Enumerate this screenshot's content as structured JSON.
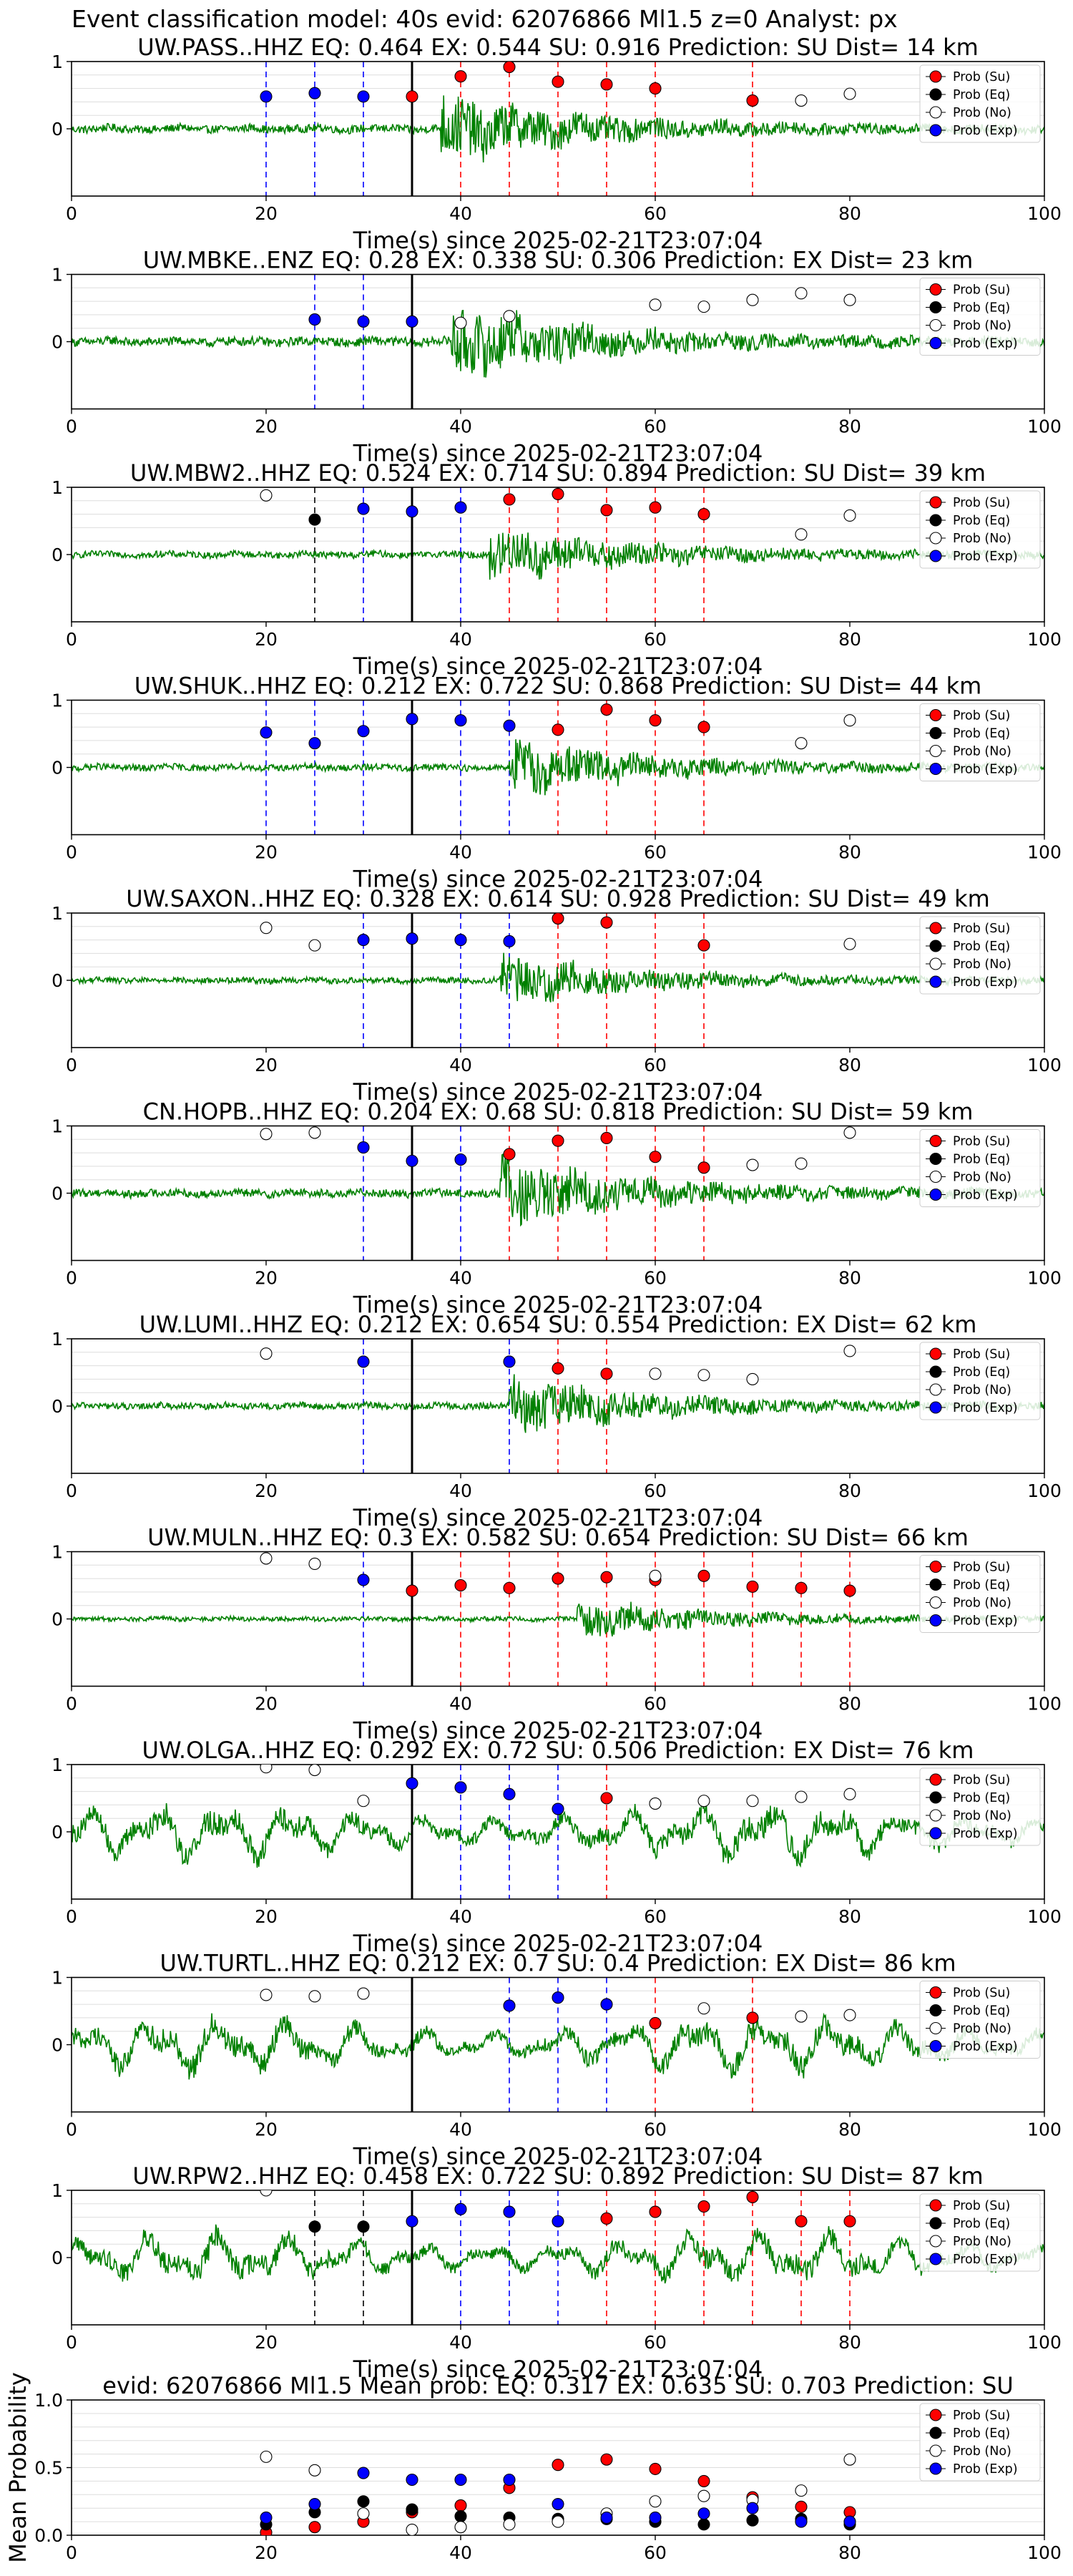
{
  "suptitle": "Event classification model: 40s evid: 62076866 Ml1.5 z=0 Analyst: px",
  "legend_labels": [
    "Prob (Su)",
    "Prob (Eq)",
    "Prob (No)",
    "Prob (Exp)"
  ],
  "colors": {
    "su": "#ff0000",
    "eq": "#000000",
    "no": "#ffffff",
    "exp": "#0000ff",
    "waveform": "#008000",
    "su_line": "#ff0000",
    "exp_line": "#0000ff",
    "eq_line": "#000000",
    "grid": "#dddddd"
  },
  "chart_data": [
    {
      "type": "scatter",
      "title": "UW.PASS..HHZ   EQ: 0.464  EX: 0.544  SU: 0.916   Prediction: SU    Dist= 14 km",
      "xlabel": "Time(s) since 2025-02-21T23:07:04",
      "ylabel": "",
      "xlim": [
        0,
        100
      ],
      "ylim": [
        -1,
        1
      ],
      "x_ticks": [
        "0",
        "20",
        "40",
        "60",
        "80",
        "100"
      ],
      "y_ticks": [
        "0",
        "1"
      ],
      "amplitude": 0.55,
      "onset": 38,
      "su_lines": [
        40,
        45,
        50,
        55,
        60,
        70
      ],
      "exp_lines": [
        20,
        25,
        30
      ],
      "eq_lines": [],
      "series": [
        {
          "name": "Prob (Su)",
          "x": [
            35,
            40,
            45,
            50,
            55,
            60,
            70
          ],
          "y": [
            0.48,
            0.78,
            0.92,
            0.7,
            0.66,
            0.6,
            0.42
          ]
        },
        {
          "name": "Prob (Eq)",
          "x": [],
          "y": []
        },
        {
          "name": "Prob (No)",
          "x": [
            75,
            80
          ],
          "y": [
            0.42,
            0.52
          ]
        },
        {
          "name": "Prob (Exp)",
          "x": [
            20,
            25,
            30
          ],
          "y": [
            0.48,
            0.53,
            0.48
          ]
        }
      ]
    },
    {
      "type": "scatter",
      "title": "UW.MBKE..ENZ   EQ: 0.28  EX: 0.338  SU: 0.306   Prediction: EX    Dist= 23 km",
      "xlabel": "Time(s) since 2025-02-21T23:07:04",
      "ylabel": "",
      "xlim": [
        0,
        100
      ],
      "ylim": [
        -1,
        1
      ],
      "x_ticks": [
        "0",
        "20",
        "40",
        "60",
        "80",
        "100"
      ],
      "y_ticks": [
        "0",
        "1"
      ],
      "amplitude": 0.6,
      "onset": 39,
      "su_lines": [],
      "exp_lines": [
        25,
        30
      ],
      "eq_lines": [],
      "series": [
        {
          "name": "Prob (Su)",
          "x": [],
          "y": []
        },
        {
          "name": "Prob (Eq)",
          "x": [],
          "y": []
        },
        {
          "name": "Prob (No)",
          "x": [
            40,
            45,
            60,
            65,
            70,
            75,
            80
          ],
          "y": [
            0.28,
            0.38,
            0.55,
            0.52,
            0.62,
            0.72,
            0.62
          ]
        },
        {
          "name": "Prob (Exp)",
          "x": [
            25,
            30,
            35
          ],
          "y": [
            0.33,
            0.3,
            0.3
          ]
        }
      ]
    },
    {
      "type": "scatter",
      "title": "UW.MBW2..HHZ   EQ: 0.524  EX: 0.714  SU: 0.894   Prediction: SU    Dist= 39 km",
      "xlabel": "Time(s) since 2025-02-21T23:07:04",
      "ylabel": "",
      "xlim": [
        0,
        100
      ],
      "ylim": [
        -1,
        1
      ],
      "x_ticks": [
        "0",
        "20",
        "40",
        "60",
        "80",
        "100"
      ],
      "y_ticks": [
        "0",
        "1"
      ],
      "amplitude": 0.45,
      "onset": 43,
      "su_lines": [
        45,
        50,
        55,
        60,
        65
      ],
      "exp_lines": [
        30,
        35,
        40
      ],
      "eq_lines": [
        25
      ],
      "series": [
        {
          "name": "Prob (Su)",
          "x": [
            45,
            50,
            55,
            60,
            65
          ],
          "y": [
            0.82,
            0.9,
            0.66,
            0.7,
            0.6
          ]
        },
        {
          "name": "Prob (Eq)",
          "x": [
            25
          ],
          "y": [
            0.52
          ]
        },
        {
          "name": "Prob (No)",
          "x": [
            20,
            75,
            80
          ],
          "y": [
            0.88,
            0.3,
            0.58
          ]
        },
        {
          "name": "Prob (Exp)",
          "x": [
            30,
            35,
            40
          ],
          "y": [
            0.68,
            0.64,
            0.7
          ]
        }
      ]
    },
    {
      "type": "scatter",
      "title": "UW.SHUK..HHZ   EQ: 0.212  EX: 0.722  SU: 0.868   Prediction: SU    Dist= 44 km",
      "xlabel": "Time(s) since 2025-02-21T23:07:04",
      "ylabel": "",
      "xlim": [
        0,
        100
      ],
      "ylim": [
        -1,
        1
      ],
      "x_ticks": [
        "0",
        "20",
        "40",
        "60",
        "80",
        "100"
      ],
      "y_ticks": [
        "0",
        "1"
      ],
      "amplitude": 0.45,
      "onset": 45,
      "su_lines": [
        50,
        55,
        60,
        65
      ],
      "exp_lines": [
        20,
        25,
        30,
        35,
        40,
        45
      ],
      "eq_lines": [],
      "series": [
        {
          "name": "Prob (Su)",
          "x": [
            50,
            55,
            60,
            65
          ],
          "y": [
            0.56,
            0.86,
            0.7,
            0.6
          ]
        },
        {
          "name": "Prob (Eq)",
          "x": [],
          "y": []
        },
        {
          "name": "Prob (No)",
          "x": [
            75,
            80
          ],
          "y": [
            0.36,
            0.7
          ]
        },
        {
          "name": "Prob (Exp)",
          "x": [
            20,
            25,
            30,
            35,
            40,
            45
          ],
          "y": [
            0.52,
            0.36,
            0.54,
            0.72,
            0.7,
            0.62
          ]
        }
      ]
    },
    {
      "type": "scatter",
      "title": "UW.SAXON..HHZ   EQ: 0.328  EX: 0.614  SU: 0.928   Prediction: SU    Dist= 49 km",
      "xlabel": "Time(s) since 2025-02-21T23:07:04",
      "ylabel": "",
      "xlim": [
        0,
        100
      ],
      "ylim": [
        -1,
        1
      ],
      "x_ticks": [
        "0",
        "20",
        "40",
        "60",
        "80",
        "100"
      ],
      "y_ticks": [
        "0",
        "1"
      ],
      "amplitude": 0.4,
      "onset": 44,
      "su_lines": [
        50,
        55,
        60,
        65
      ],
      "exp_lines": [
        30,
        35,
        40,
        45
      ],
      "eq_lines": [],
      "series": [
        {
          "name": "Prob (Su)",
          "x": [
            50,
            55,
            65
          ],
          "y": [
            0.92,
            0.86,
            0.52
          ]
        },
        {
          "name": "Prob (Eq)",
          "x": [],
          "y": []
        },
        {
          "name": "Prob (No)",
          "x": [
            20,
            25,
            80
          ],
          "y": [
            0.78,
            0.52,
            0.54
          ]
        },
        {
          "name": "Prob (Exp)",
          "x": [
            30,
            35,
            40,
            45
          ],
          "y": [
            0.6,
            0.62,
            0.6,
            0.58
          ]
        }
      ]
    },
    {
      "type": "scatter",
      "title": "CN.HOPB..HHZ   EQ: 0.204  EX: 0.68  SU: 0.818   Prediction: SU    Dist= 59 km",
      "xlabel": "Time(s) since 2025-02-21T23:07:04",
      "ylabel": "",
      "xlim": [
        0,
        100
      ],
      "ylim": [
        -1,
        1
      ],
      "x_ticks": [
        "0",
        "20",
        "40",
        "60",
        "80",
        "100"
      ],
      "y_ticks": [
        "0",
        "1"
      ],
      "amplitude": 0.55,
      "onset": 44,
      "su_lines": [
        45,
        50,
        55,
        60,
        65
      ],
      "exp_lines": [
        30,
        40
      ],
      "eq_lines": [],
      "series": [
        {
          "name": "Prob (Su)",
          "x": [
            45,
            50,
            55,
            60,
            65
          ],
          "y": [
            0.58,
            0.78,
            0.82,
            0.54,
            0.38
          ]
        },
        {
          "name": "Prob (Eq)",
          "x": [],
          "y": []
        },
        {
          "name": "Prob (No)",
          "x": [
            20,
            25,
            70,
            75,
            80
          ],
          "y": [
            0.88,
            0.9,
            0.42,
            0.44,
            0.9
          ]
        },
        {
          "name": "Prob (Exp)",
          "x": [
            30,
            35,
            40
          ],
          "y": [
            0.68,
            0.48,
            0.5
          ]
        }
      ]
    },
    {
      "type": "scatter",
      "title": "UW.LUMI..HHZ   EQ: 0.212  EX: 0.654  SU: 0.554   Prediction: EX    Dist= 62 km",
      "xlabel": "Time(s) since 2025-02-21T23:07:04",
      "ylabel": "",
      "xlim": [
        0,
        100
      ],
      "ylim": [
        -1,
        1
      ],
      "x_ticks": [
        "0",
        "20",
        "40",
        "60",
        "80",
        "100"
      ],
      "y_ticks": [
        "0",
        "1"
      ],
      "amplitude": 0.45,
      "onset": 45,
      "su_lines": [
        50,
        55
      ],
      "exp_lines": [
        30,
        45
      ],
      "eq_lines": [],
      "series": [
        {
          "name": "Prob (Su)",
          "x": [
            50,
            55
          ],
          "y": [
            0.56,
            0.48
          ]
        },
        {
          "name": "Prob (Eq)",
          "x": [],
          "y": []
        },
        {
          "name": "Prob (No)",
          "x": [
            20,
            60,
            65,
            70,
            80
          ],
          "y": [
            0.78,
            0.48,
            0.46,
            0.4,
            0.82
          ]
        },
        {
          "name": "Prob (Exp)",
          "x": [
            30,
            45
          ],
          "y": [
            0.66,
            0.66
          ]
        }
      ]
    },
    {
      "type": "scatter",
      "title": "UW.MULN..HHZ   EQ: 0.3  EX: 0.582  SU: 0.654   Prediction: SU    Dist= 66 km",
      "xlabel": "Time(s) since 2025-02-21T23:07:04",
      "ylabel": "",
      "xlim": [
        0,
        100
      ],
      "ylim": [
        -1,
        1
      ],
      "x_ticks": [
        "0",
        "20",
        "40",
        "60",
        "80",
        "100"
      ],
      "y_ticks": [
        "0",
        "1"
      ],
      "amplitude": 0.3,
      "onset": 52,
      "su_lines": [
        40,
        45,
        50,
        55,
        60,
        65,
        70,
        75,
        80
      ],
      "exp_lines": [
        30
      ],
      "eq_lines": [],
      "series": [
        {
          "name": "Prob (Su)",
          "x": [
            35,
            40,
            45,
            50,
            55,
            60,
            65,
            70,
            75,
            80
          ],
          "y": [
            0.42,
            0.5,
            0.46,
            0.6,
            0.62,
            0.58,
            0.64,
            0.48,
            0.46,
            0.42
          ]
        },
        {
          "name": "Prob (Eq)",
          "x": [],
          "y": []
        },
        {
          "name": "Prob (No)",
          "x": [
            20,
            25,
            60
          ],
          "y": [
            0.9,
            0.82,
            0.64
          ]
        },
        {
          "name": "Prob (Exp)",
          "x": [
            30
          ],
          "y": [
            0.58
          ]
        }
      ]
    },
    {
      "type": "scatter",
      "title": "UW.OLGA..HHZ   EQ: 0.292  EX: 0.72  SU: 0.506   Prediction: EX    Dist= 76 km",
      "xlabel": "Time(s) since 2025-02-21T23:07:04",
      "ylabel": "",
      "xlim": [
        0,
        100
      ],
      "ylim": [
        -1,
        1
      ],
      "x_ticks": [
        "0",
        "20",
        "40",
        "60",
        "80",
        "100"
      ],
      "y_ticks": [
        "0",
        "1"
      ],
      "amplitude": 0.55,
      "onset": 0,
      "su_lines": [
        55
      ],
      "exp_lines": [
        35,
        40,
        45,
        50
      ],
      "eq_lines": [],
      "series": [
        {
          "name": "Prob (Su)",
          "x": [
            55
          ],
          "y": [
            0.5
          ]
        },
        {
          "name": "Prob (Eq)",
          "x": [],
          "y": []
        },
        {
          "name": "Prob (No)",
          "x": [
            20,
            25,
            30,
            60,
            65,
            70,
            75,
            80
          ],
          "y": [
            0.96,
            0.92,
            0.46,
            0.42,
            0.46,
            0.46,
            0.52,
            0.56
          ]
        },
        {
          "name": "Prob (Exp)",
          "x": [
            35,
            40,
            45,
            50
          ],
          "y": [
            0.72,
            0.66,
            0.56,
            0.34
          ]
        }
      ]
    },
    {
      "type": "scatter",
      "title": "UW.TURTL..HHZ   EQ: 0.212  EX: 0.7  SU: 0.4   Prediction: EX    Dist= 86 km",
      "xlabel": "Time(s) since 2025-02-21T23:07:04",
      "ylabel": "",
      "xlim": [
        0,
        100
      ],
      "ylim": [
        -1,
        1
      ],
      "x_ticks": [
        "0",
        "20",
        "40",
        "60",
        "80",
        "100"
      ],
      "y_ticks": [
        "0",
        "1"
      ],
      "amplitude": 0.55,
      "onset": 0,
      "su_lines": [
        60,
        70
      ],
      "exp_lines": [
        45,
        50,
        55
      ],
      "eq_lines": [],
      "series": [
        {
          "name": "Prob (Su)",
          "x": [
            60,
            70
          ],
          "y": [
            0.32,
            0.4
          ]
        },
        {
          "name": "Prob (Eq)",
          "x": [],
          "y": []
        },
        {
          "name": "Prob (No)",
          "x": [
            20,
            25,
            30,
            65,
            75,
            80
          ],
          "y": [
            0.74,
            0.72,
            0.76,
            0.54,
            0.42,
            0.44
          ]
        },
        {
          "name": "Prob (Exp)",
          "x": [
            45,
            50,
            55
          ],
          "y": [
            0.58,
            0.7,
            0.6
          ]
        }
      ]
    },
    {
      "type": "scatter",
      "title": "UW.RPW2..HHZ   EQ: 0.458  EX: 0.722  SU: 0.892   Prediction: SU    Dist= 87 km",
      "xlabel": "Time(s) since 2025-02-21T23:07:04",
      "ylabel": "",
      "xlim": [
        0,
        100
      ],
      "ylim": [
        -1,
        1
      ],
      "x_ticks": [
        "0",
        "20",
        "40",
        "60",
        "80",
        "100"
      ],
      "y_ticks": [
        "0",
        "1"
      ],
      "amplitude": 0.5,
      "onset": 0,
      "su_lines": [
        55,
        60,
        65,
        70,
        75,
        80
      ],
      "exp_lines": [
        35,
        40,
        45,
        50
      ],
      "eq_lines": [
        25,
        30
      ],
      "series": [
        {
          "name": "Prob (Su)",
          "x": [
            55,
            60,
            65,
            70,
            75,
            80
          ],
          "y": [
            0.58,
            0.68,
            0.76,
            0.9,
            0.54,
            0.54
          ]
        },
        {
          "name": "Prob (Eq)",
          "x": [
            25,
            30
          ],
          "y": [
            0.46,
            0.46
          ]
        },
        {
          "name": "Prob (No)",
          "x": [
            20
          ],
          "y": [
            1.0
          ]
        },
        {
          "name": "Prob (Exp)",
          "x": [
            35,
            40,
            45,
            50
          ],
          "y": [
            0.54,
            0.72,
            0.68,
            0.54
          ]
        }
      ]
    },
    {
      "type": "scatter",
      "title": "evid: 62076866  Ml1.5   Mean prob:   EQ: 0.317  EX: 0.635  SU: 0.703   Prediction: SU",
      "xlabel": "",
      "ylabel": "Mean Probability",
      "xlim": [
        0,
        100
      ],
      "ylim": [
        0,
        1
      ],
      "x_ticks": [
        "0",
        "20",
        "40",
        "60",
        "80",
        "100"
      ],
      "y_ticks": [
        "0.0",
        "0.5",
        "1.0"
      ],
      "grid": true,
      "series": [
        {
          "name": "Prob (Su)",
          "x": [
            20,
            25,
            30,
            35,
            40,
            45,
            50,
            55,
            60,
            65,
            70,
            75,
            80
          ],
          "y": [
            0.02,
            0.06,
            0.1,
            0.17,
            0.22,
            0.35,
            0.52,
            0.56,
            0.49,
            0.4,
            0.28,
            0.21,
            0.17
          ]
        },
        {
          "name": "Prob (Eq)",
          "x": [
            20,
            25,
            30,
            35,
            40,
            45,
            50,
            55,
            60,
            65,
            70,
            75,
            80
          ],
          "y": [
            0.08,
            0.17,
            0.25,
            0.19,
            0.14,
            0.13,
            0.12,
            0.12,
            0.1,
            0.08,
            0.11,
            0.12,
            0.08
          ]
        },
        {
          "name": "Prob (No)",
          "x": [
            20,
            25,
            30,
            35,
            40,
            45,
            50,
            55,
            60,
            65,
            70,
            75,
            80
          ],
          "y": [
            0.58,
            0.48,
            0.16,
            0.04,
            0.06,
            0.08,
            0.1,
            0.16,
            0.25,
            0.29,
            0.26,
            0.33,
            0.56
          ]
        },
        {
          "name": "Prob (Exp)",
          "x": [
            20,
            25,
            30,
            35,
            40,
            45,
            50,
            55,
            60,
            65,
            70,
            75,
            80
          ],
          "y": [
            0.13,
            0.23,
            0.46,
            0.41,
            0.41,
            0.41,
            0.23,
            0.13,
            0.13,
            0.16,
            0.2,
            0.1,
            0.1
          ]
        }
      ]
    }
  ]
}
